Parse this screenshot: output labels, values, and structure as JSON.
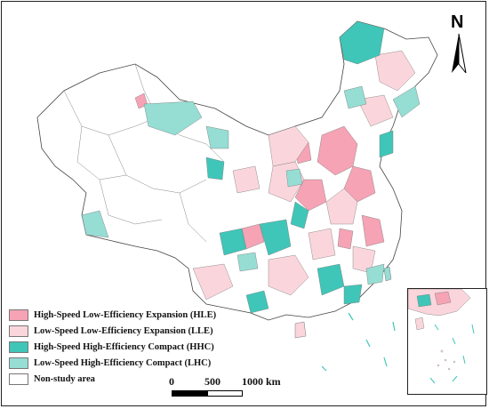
{
  "north_label": "N",
  "legend": [
    {
      "label": "High-Speed Low-Efficiency Expansion (HLE)",
      "color": "#f5a3b5"
    },
    {
      "label": "Low-Speed Low-Efficiency Expansion (LLE)",
      "color": "#fad6dc"
    },
    {
      "label": "High-Speed High-Efficiency Compact (HHC)",
      "color": "#3fc6b8"
    },
    {
      "label": "Low-Speed High-Efficiency Compact (LHC)",
      "color": "#96ddd4"
    },
    {
      "label": "Non-study area",
      "color": "#ffffff"
    }
  ],
  "scale": {
    "labels": [
      "0",
      "500",
      "1000 km"
    ]
  },
  "colors": {
    "HLE": "#f5a3b5",
    "LLE": "#fad6dc",
    "HHC": "#3fc6b8",
    "LHC": "#96ddd4",
    "non_study": "#ffffff",
    "boundary": "#555555"
  }
}
